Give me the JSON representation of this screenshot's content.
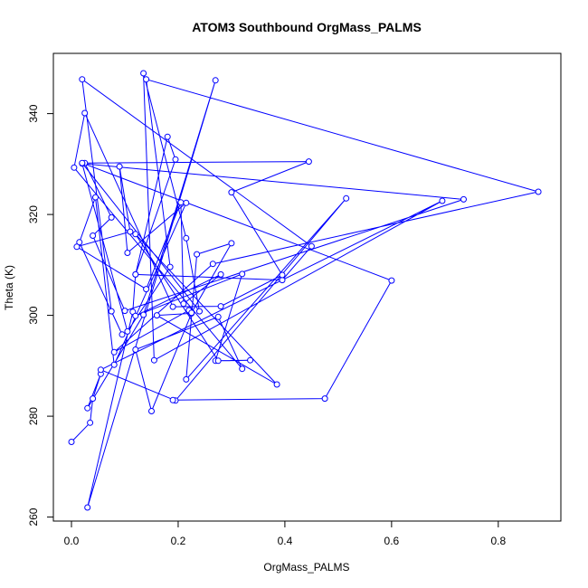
{
  "chart_data": {
    "type": "line",
    "title": "ATOM3 Southbound OrgMass_PALMS",
    "xlabel": "OrgMass_PALMS",
    "ylabel": "Theta (K)",
    "xlim": [
      0.0,
      0.88
    ],
    "ylim": [
      261.9,
      348.0
    ],
    "xticks": [
      0.0,
      0.2,
      0.4,
      0.6,
      0.8
    ],
    "xtick_labels": [
      "0.0",
      "0.2",
      "0.4",
      "0.6",
      "0.8"
    ],
    "yticks": [
      260,
      280,
      300,
      320,
      340
    ],
    "ytick_labels": [
      "260",
      "280",
      "300",
      "320",
      "340"
    ],
    "grid": false,
    "legend": "none",
    "series": [
      {
        "color": "#0000ff",
        "marker": "open-circle",
        "x": [
          0.0,
          0.035,
          0.04,
          0.055,
          0.03,
          0.135,
          0.27,
          0.03,
          0.115,
          0.12,
          0.195,
          0.18,
          0.12,
          0.395,
          0.45,
          0.02,
          0.075,
          0.095,
          0.015,
          0.045,
          0.08,
          0.215,
          0.105,
          0.09,
          0.11,
          0.01,
          0.14,
          0.205,
          0.21,
          0.28,
          0.12,
          0.32,
          0.27,
          0.335,
          0.275,
          0.12,
          0.385,
          0.16,
          0.225,
          0.15,
          0.12,
          0.275,
          0.32,
          0.005,
          0.025,
          0.19,
          0.28,
          0.395,
          0.3,
          0.445,
          0.025,
          0.075,
          0.04,
          0.1,
          0.735,
          0.02,
          0.105,
          0.185,
          0.14,
          0.875,
          0.265,
          0.08,
          0.22,
          0.225,
          0.3,
          0.235,
          0.215,
          0.515,
          0.195,
          0.055,
          0.695,
          0.155,
          0.135,
          0.215,
          0.24,
          0.02,
          0.6,
          0.475,
          0.19
        ],
        "y": [
          274.9,
          278.7,
          283.5,
          288.4,
          281.6,
          300.1,
          346.6,
          261.9,
          300.7,
          308.1,
          330.9,
          335.4,
          308.1,
          307.0,
          313.7,
          346.8,
          300.8,
          296.2,
          314.5,
          323.4,
          290.2,
          322.3,
          312.4,
          329.5,
          316.6,
          313.6,
          305.2,
          322.4,
          302.3,
          308.1,
          299.9,
          308.2,
          291.0,
          291.1,
          291.0,
          316.1,
          286.3,
          300.0,
          300.4,
          281.0,
          293.2,
          299.7,
          289.4,
          329.3,
          340.1,
          301.7,
          301.8,
          308.0,
          324.4,
          330.5,
          330.2,
          319.4,
          315.8,
          300.9,
          323.0,
          330.1,
          296.8,
          309.6,
          346.8,
          324.5,
          310.2,
          292.7,
          301.0,
          300.5,
          314.3,
          312.1,
          287.3,
          323.2,
          283.1,
          289.2,
          322.7,
          291.1,
          348.0,
          315.3,
          300.8,
          330.2,
          306.9,
          283.5,
          283.2
        ]
      }
    ]
  }
}
